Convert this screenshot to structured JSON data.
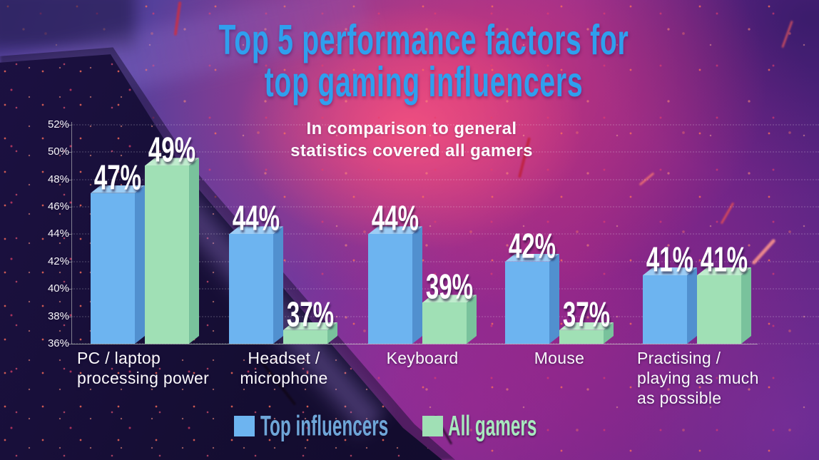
{
  "title": {
    "lines": [
      "Top 5 performance factors for",
      "top gaming influencers"
    ],
    "color": "#2f9fee"
  },
  "subtitle": {
    "lines": [
      "In comparison to general",
      "statistics covered all gamers"
    ]
  },
  "legend": {
    "items": [
      {
        "label": "Top influencers",
        "swatch_color": "#6db4f0",
        "label_color": "#6fa6d8"
      },
      {
        "label": "All gamers",
        "swatch_color": "#a0e0b5",
        "label_color": "#a8e9be"
      }
    ]
  },
  "chart_data": {
    "type": "bar",
    "title": "Top 5 performance factors for top gaming influencers",
    "subtitle": "In comparison to general statistics covered all gamers",
    "categories": [
      "PC / laptop processing power",
      "Headset / microphone",
      "Keyboard",
      "Mouse",
      "Practising / playing as much as possible"
    ],
    "category_label_lines": [
      [
        "PC / laptop",
        "processing power"
      ],
      [
        "Headset /",
        "microphone"
      ],
      [
        "Keyboard"
      ],
      [
        "Mouse"
      ],
      [
        "Practising /",
        "playing as much",
        "as possible"
      ]
    ],
    "series": [
      {
        "name": "Top influencers",
        "values": [
          47,
          44,
          44,
          42,
          41
        ],
        "colors": {
          "front": "#6db4f0",
          "top": "#9dcdf4",
          "side": "#5190cf"
        }
      },
      {
        "name": "All gamers",
        "values": [
          49,
          37,
          39,
          37,
          41
        ],
        "colors": {
          "front": "#a0e0b5",
          "top": "#c0ecce",
          "side": "#79c29c"
        }
      }
    ],
    "value_suffix": "%",
    "y_ticks": [
      "52%",
      "50%",
      "48%",
      "46%",
      "44%",
      "42%",
      "40%",
      "38%",
      "36%"
    ],
    "y_tick_values": [
      52,
      50,
      48,
      46,
      44,
      42,
      40,
      38,
      36
    ],
    "ylim": [
      36,
      52
    ],
    "grid": "faint dotted horizontal lines",
    "legend_position": "bottom",
    "bar_style": "3d"
  }
}
